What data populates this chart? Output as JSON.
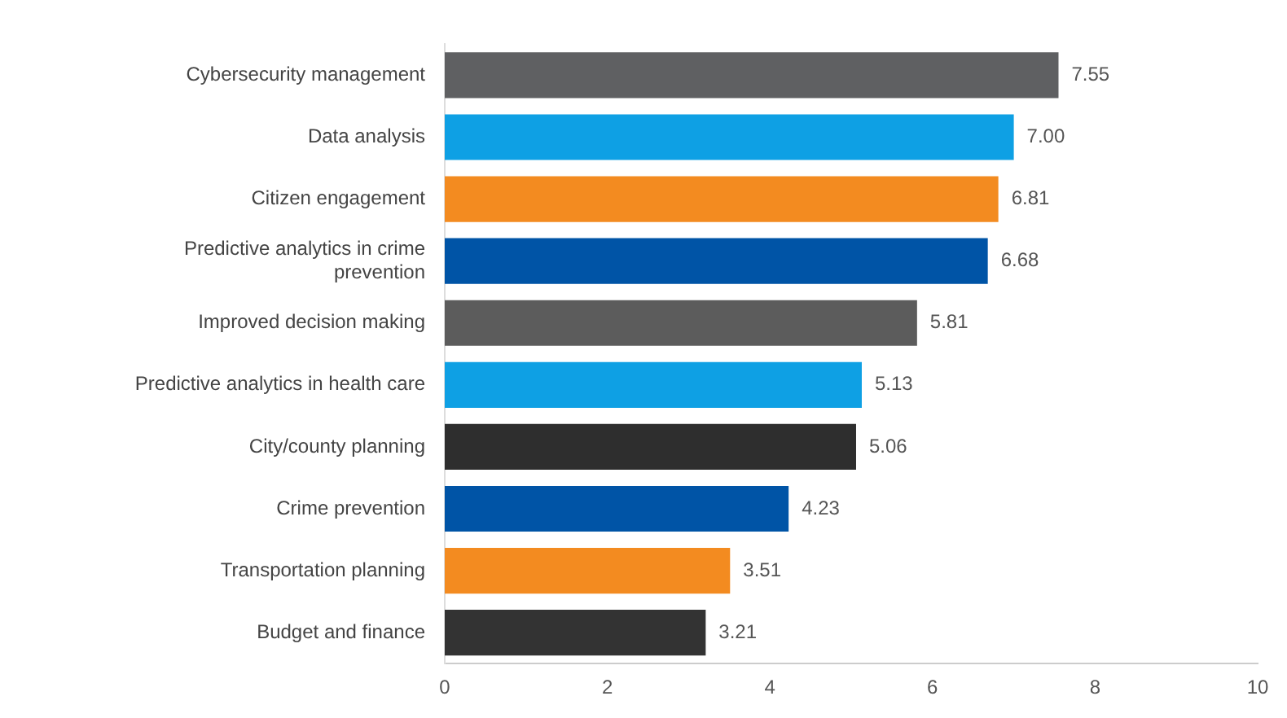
{
  "chart_data": {
    "type": "bar",
    "orientation": "horizontal",
    "categories": [
      "Cybersecurity management",
      "Data analysis",
      "Citizen engagement",
      "Predictive analytics in crime prevention",
      "Improved decision making",
      "Predictive analytics in health care",
      "City/county planning",
      "Crime prevention",
      "Transportation planning",
      "Budget and finance"
    ],
    "values": [
      7.55,
      7.0,
      6.81,
      6.68,
      5.81,
      5.13,
      5.06,
      4.23,
      3.51,
      3.21
    ],
    "value_labels": [
      "7.55",
      "7.00",
      "6.81",
      "6.68",
      "5.81",
      "5.13",
      "5.06",
      "4.23",
      "3.51",
      "3.21"
    ],
    "colors": [
      "#5f6062",
      "#0ea0e4",
      "#f38b20",
      "#0054a6",
      "#5c5c5c",
      "#0ea0e4",
      "#2e2e2e",
      "#0054a6",
      "#f38b20",
      "#333333"
    ],
    "xlim": [
      0,
      10
    ],
    "xticks": [
      0,
      2,
      4,
      6,
      8,
      10
    ],
    "grid": false,
    "legend": false
  }
}
